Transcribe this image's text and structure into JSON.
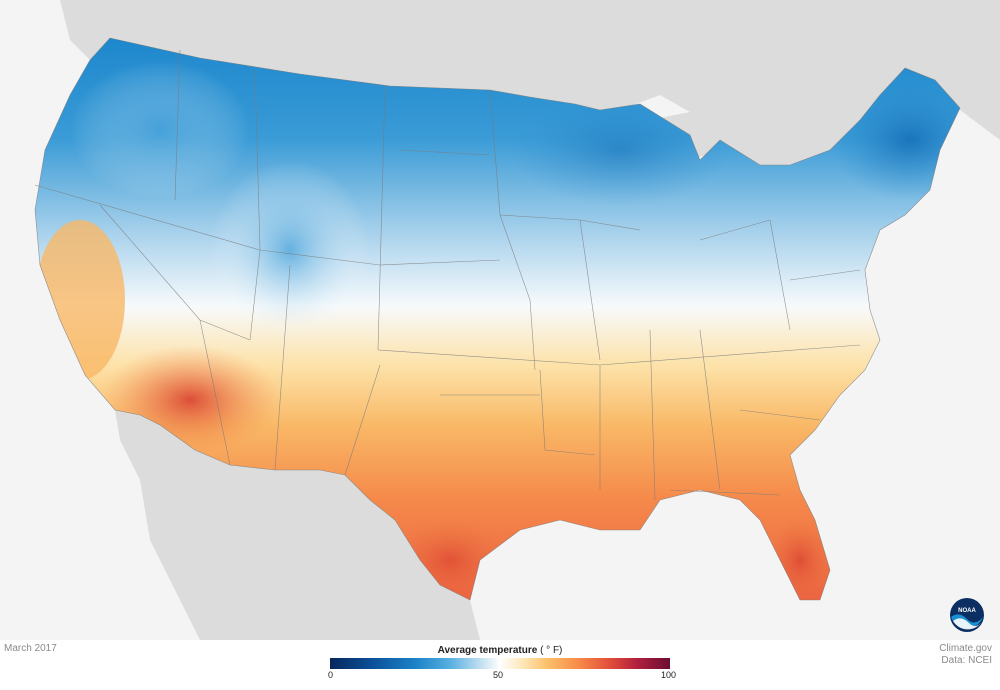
{
  "footer": {
    "date_label": "March 2017",
    "credit_line1": "Climate.gov",
    "credit_line2": "Data: NCEI"
  },
  "legend": {
    "title": "Average temperature",
    "unit": "( ° F)",
    "ticks": [
      "0",
      "50",
      "100"
    ],
    "min_value": 0,
    "mid_value": 50,
    "max_value": 100
  },
  "logo": {
    "text": "NOAA"
  },
  "colors": {
    "cold": "#1c82c7",
    "neutral": "#ffffff",
    "warm": "#f78b4a",
    "hot": "#e3503a",
    "land_background": "#dcdcdc",
    "water": "#f4f4f4"
  }
}
